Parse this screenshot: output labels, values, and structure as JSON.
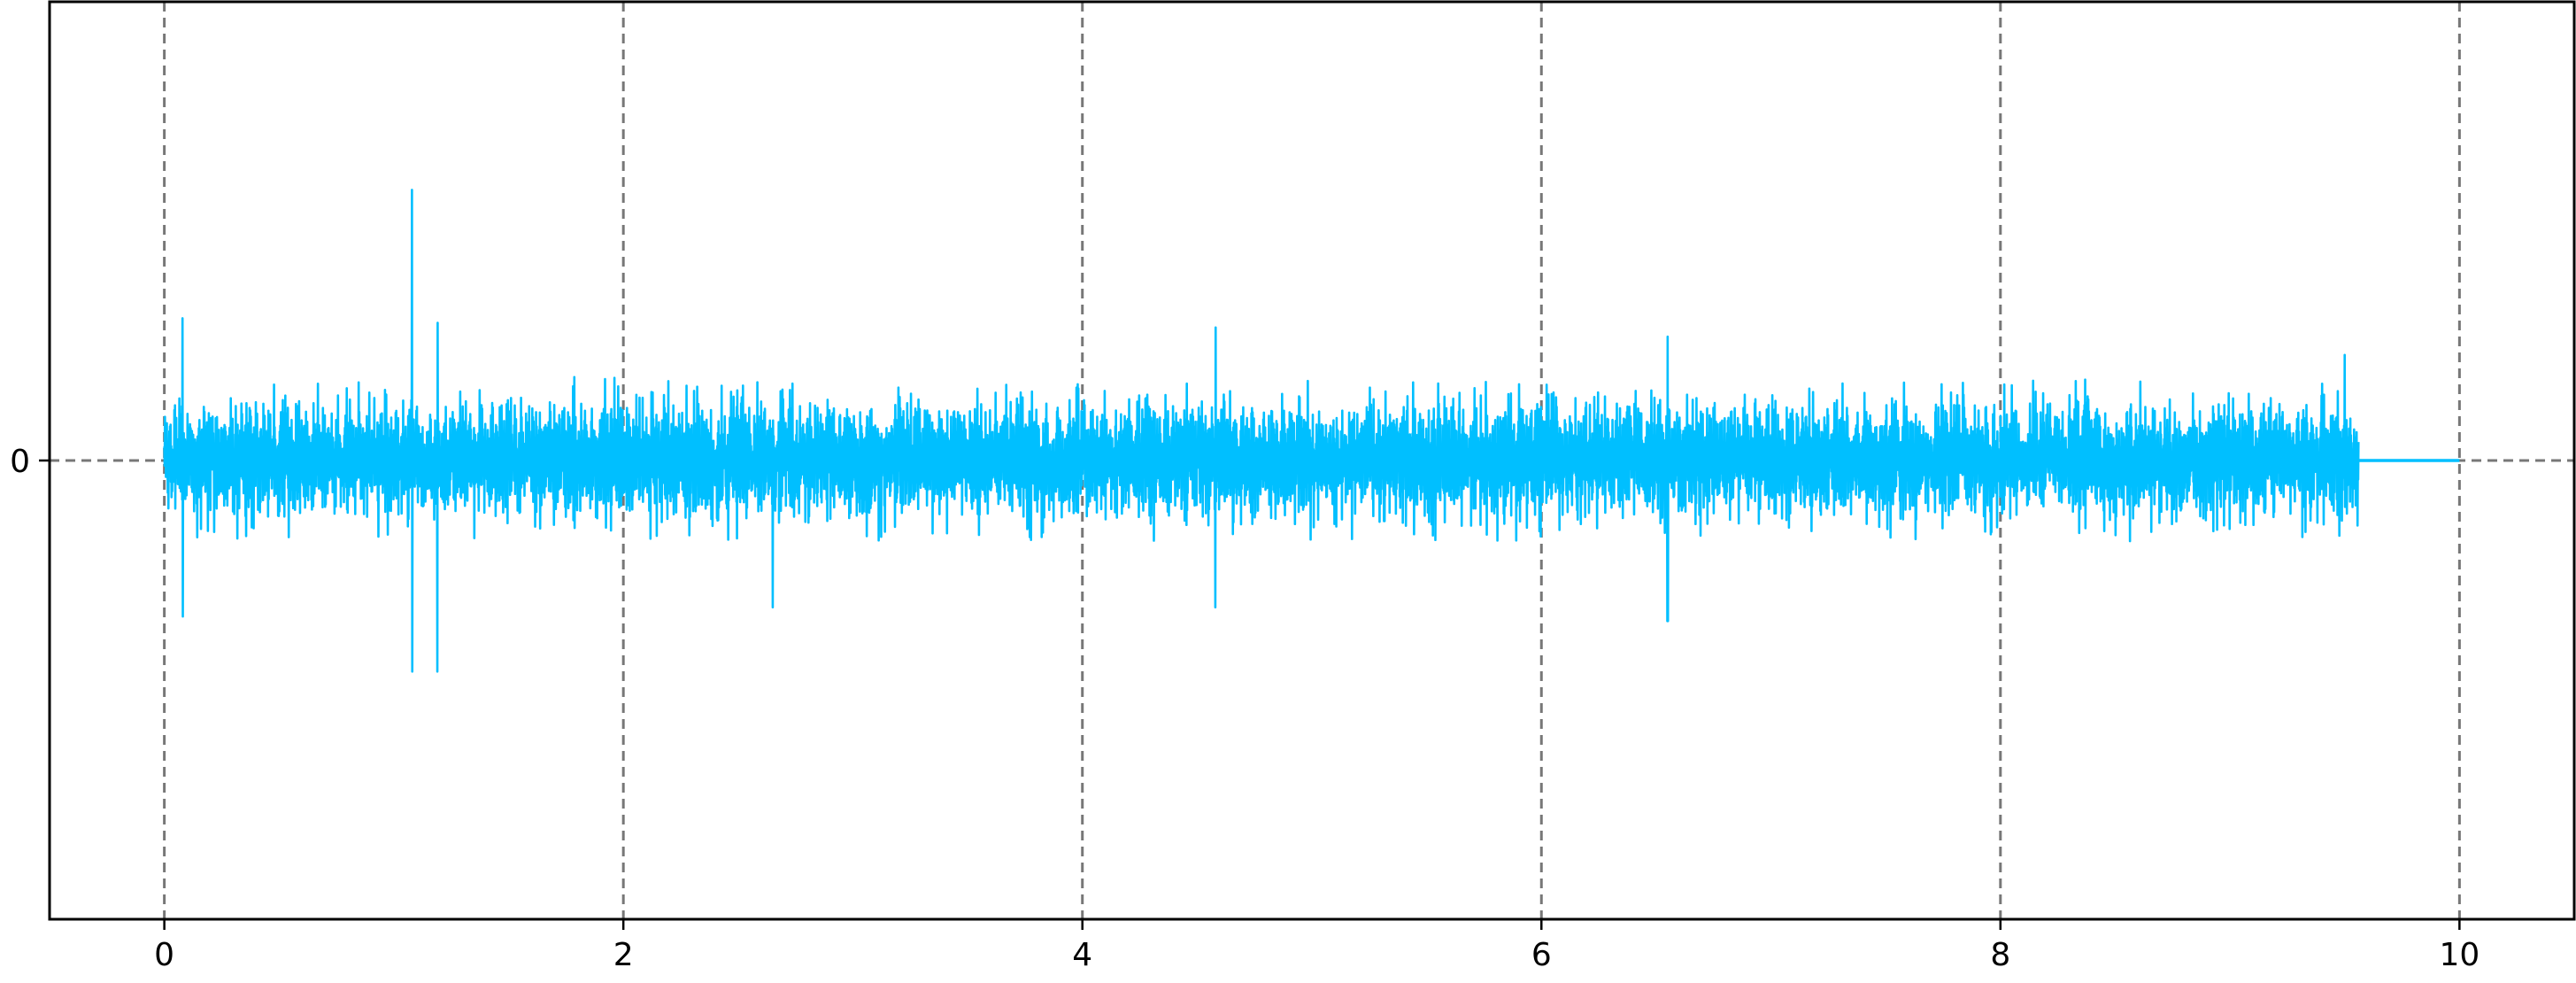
{
  "chart_data": {
    "type": "line",
    "title": "",
    "xlabel": "",
    "ylabel": "",
    "xlim": [
      -0.5,
      10.5
    ],
    "ylim": [
      -1.0,
      1.0
    ],
    "xticks": [
      0,
      2,
      4,
      6,
      8,
      10
    ],
    "xtick_labels": [
      "0",
      "2",
      "4",
      "6",
      "8",
      "10"
    ],
    "yticks": [
      0
    ],
    "ytick_labels": [
      "0"
    ],
    "grid": {
      "vertical_dashed_lines_at": [
        0,
        2,
        4,
        6,
        8,
        10
      ],
      "horizontal_dashed_line_at": 0,
      "color": "#777777"
    },
    "legend": "none",
    "series": [
      {
        "color": "#00bfff",
        "description_values": {
          "signal_start": 0.0,
          "signal_end": 9.56,
          "flat_segment": [
            9.56,
            10.0
          ],
          "typical_amplitude": 0.13,
          "peaks": [
            {
              "x": 0.08,
              "y": 0.31
            },
            {
              "x": 0.08,
              "y": -0.34
            },
            {
              "x": 1.08,
              "y": 0.59
            },
            {
              "x": 1.08,
              "y": -0.46
            },
            {
              "x": 1.19,
              "y": 0.3
            },
            {
              "x": 1.19,
              "y": -0.46
            },
            {
              "x": 2.65,
              "y": -0.32
            },
            {
              "x": 4.58,
              "y": 0.29
            },
            {
              "x": 4.58,
              "y": -0.32
            },
            {
              "x": 6.55,
              "y": 0.27
            },
            {
              "x": 6.55,
              "y": -0.35
            },
            {
              "x": 9.5,
              "y": 0.23
            }
          ]
        }
      }
    ]
  }
}
